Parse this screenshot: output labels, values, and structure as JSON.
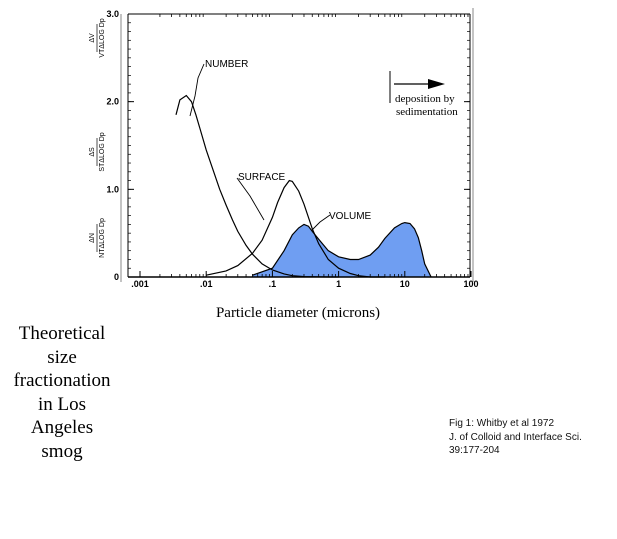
{
  "caption": [
    "Theoretical",
    "size",
    "fractionation",
    "in Los",
    "Angeles",
    "smog"
  ],
  "reference": [
    "Fig 1: Whitby et al 1972",
    "J. of Colloid and Interface Sci.",
    "39:177-204"
  ],
  "colors": {
    "volume_fill": "#6f9ef2",
    "ink": "#000000"
  },
  "chart_data": {
    "type": "line",
    "x_scale": "log",
    "xlabel": "Particle diameter (microns)",
    "ylabels": [
      "ΔV / VTΔLOG Dp",
      "ΔS / STΔLOG Dp",
      "ΔN / NTΔLOG Dp"
    ],
    "xlim": [
      0.001,
      100
    ],
    "ylim": [
      0,
      3.0
    ],
    "x_ticks": [
      {
        "value": 0.001,
        "label": ".001"
      },
      {
        "value": 0.01,
        "label": ".01"
      },
      {
        "value": 0.1,
        "label": ".1"
      },
      {
        "value": 1,
        "label": "1"
      },
      {
        "value": 10,
        "label": "10"
      },
      {
        "value": 100,
        "label": "100"
      }
    ],
    "y_ticks": [
      {
        "value": 0,
        "label": "0"
      },
      {
        "value": 1.0,
        "label": "1.0"
      },
      {
        "value": 2.0,
        "label": "2.0"
      },
      {
        "value": 3.0,
        "label": "3.0"
      }
    ],
    "series": [
      {
        "name": "NUMBER",
        "x": [
          0.0035,
          0.004,
          0.005,
          0.006,
          0.007,
          0.008,
          0.01,
          0.013,
          0.016,
          0.02,
          0.025,
          0.03,
          0.04,
          0.05,
          0.07,
          0.1,
          0.15,
          0.2,
          0.3,
          0.5,
          0.8,
          1.0
        ],
        "y": [
          1.85,
          2.02,
          2.07,
          2.0,
          1.85,
          1.7,
          1.45,
          1.2,
          1.0,
          0.82,
          0.65,
          0.52,
          0.36,
          0.26,
          0.15,
          0.08,
          0.035,
          0.015,
          0.005,
          0.001,
          0.0,
          0.0
        ]
      },
      {
        "name": "SURFACE",
        "x": [
          0.01,
          0.02,
          0.03,
          0.05,
          0.07,
          0.1,
          0.12,
          0.15,
          0.18,
          0.2,
          0.25,
          0.3,
          0.4,
          0.5,
          0.7,
          1.0,
          1.5,
          2.0,
          3.0,
          5.0
        ],
        "y": [
          0.02,
          0.07,
          0.13,
          0.27,
          0.42,
          0.68,
          0.85,
          1.02,
          1.1,
          1.09,
          0.98,
          0.83,
          0.55,
          0.38,
          0.2,
          0.1,
          0.04,
          0.015,
          0.0,
          0.0
        ]
      },
      {
        "name": "VOLUME",
        "x": [
          0.05,
          0.1,
          0.15,
          0.2,
          0.25,
          0.3,
          0.35,
          0.4,
          0.5,
          0.7,
          1.0,
          1.5,
          2.0,
          3.0,
          4.0,
          5.0,
          7.0,
          9.0,
          10.0,
          12.0,
          14.0,
          16.0,
          18.0,
          20.0,
          25.0
        ],
        "y": [
          0.02,
          0.1,
          0.3,
          0.48,
          0.56,
          0.6,
          0.58,
          0.52,
          0.43,
          0.3,
          0.23,
          0.2,
          0.2,
          0.25,
          0.34,
          0.44,
          0.56,
          0.61,
          0.62,
          0.61,
          0.55,
          0.45,
          0.3,
          0.15,
          0.0
        ]
      }
    ],
    "annotations": {
      "number_label": "NUMBER",
      "surface_label": "SURFACE",
      "volume_label": "VOLUME",
      "deposition_line1": "deposition by",
      "deposition_line2": "sedimentation"
    }
  }
}
